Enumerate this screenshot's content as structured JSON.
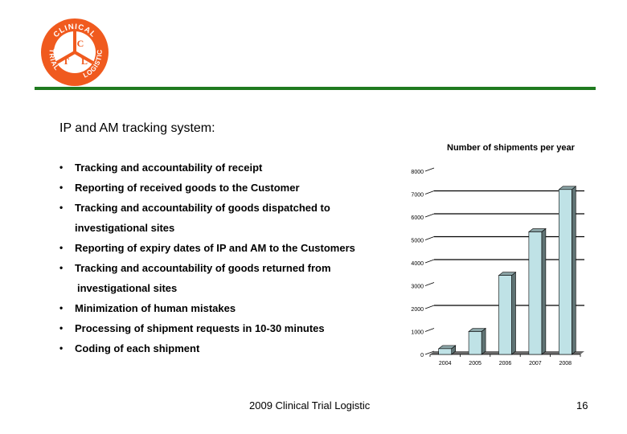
{
  "logo": {
    "top_text": "CLINICAL",
    "left_text": "TRIAL",
    "right_text": "LOGISTIC",
    "letters": [
      "C",
      "T",
      "L"
    ],
    "color": "#f05a1e"
  },
  "divider_color": "#1f7a1f",
  "slide": {
    "title": "IP and AM tracking system:",
    "bullets": [
      {
        "text": "Tracking and accountability of receipt"
      },
      {
        "text": "Reporting of received goods to the Customer"
      },
      {
        "text": "Tracking and accountability of goods dispatched to",
        "cont": "investigational sites"
      },
      {
        "text": "Reporting of expiry dates of IP and AM to the Customers"
      },
      {
        "text": "Tracking and accountability of goods returned from",
        "cont": "investigational sites"
      },
      {
        "text": "Minimization of human mistakes"
      },
      {
        "text": "Processing of shipment requests in 10-30 minutes"
      },
      {
        "text": "Coding of each shipment"
      }
    ],
    "bullet_glyph": "•"
  },
  "footer": {
    "text": "2009 Clinical Trial Logistic",
    "page_number": "16"
  },
  "chart_data": {
    "type": "bar",
    "title": "Number of shipments per year",
    "categories": [
      "2004",
      "2005",
      "2006",
      "2007",
      "2008"
    ],
    "values": [
      250,
      1000,
      3450,
      5350,
      7200
    ],
    "xlabel": "",
    "ylabel": "",
    "ylim": [
      0,
      8000
    ],
    "yticks": [
      0,
      1000,
      2000,
      3000,
      4000,
      5000,
      6000,
      7000,
      8000
    ],
    "grid": true,
    "legend": "none",
    "style": "3d-column",
    "bar_color": "#bfe2e6",
    "bar_side_color": "#5f7374"
  }
}
